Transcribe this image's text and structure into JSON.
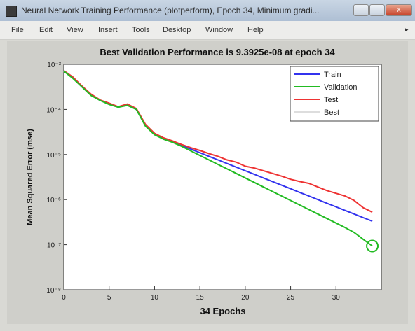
{
  "window": {
    "title": "Neural Network Training Performance (plotperform), Epoch 34, Minimum gradi...",
    "icon": "matlab-figure-icon",
    "controls": {
      "close_label": "x"
    }
  },
  "menu": [
    "File",
    "Edit",
    "View",
    "Insert",
    "Tools",
    "Desktop",
    "Window",
    "Help"
  ],
  "chart_data": {
    "type": "line",
    "title": "Best Validation Performance is 9.3925e-08 at epoch 34",
    "xlabel": "34 Epochs",
    "ylabel": "Mean Squared Error  (mse)",
    "xlim": [
      0,
      35
    ],
    "ylim_log10": [
      -8,
      -3
    ],
    "yscale": "log",
    "x_ticks": [
      0,
      5,
      10,
      15,
      20,
      25,
      30
    ],
    "x_tick_labels": [
      "0",
      "5",
      "10",
      "15",
      "20",
      "25",
      "30"
    ],
    "y_ticks_log10": [
      -8,
      -7,
      -6,
      -5,
      -4,
      -3
    ],
    "y_tick_labels": [
      "10⁻⁸",
      "10⁻⁷",
      "10⁻⁶",
      "10⁻⁵",
      "10⁻⁴",
      "10⁻³"
    ],
    "legend_position": "top-right",
    "grid": false,
    "best_marker": {
      "epoch": 34,
      "value_log10": -7.03
    },
    "series": [
      {
        "name": "Train",
        "color": "#3333ee",
        "x": [
          0,
          1,
          2,
          3,
          4,
          5,
          6,
          7,
          8,
          9,
          10,
          11,
          12,
          13,
          14,
          15,
          16,
          17,
          18,
          19,
          20,
          21,
          22,
          23,
          24,
          25,
          26,
          27,
          28,
          29,
          30,
          31,
          32,
          33,
          34
        ],
        "log10": [
          -3.15,
          -3.3,
          -3.5,
          -3.68,
          -3.8,
          -3.88,
          -3.95,
          -3.9,
          -4.0,
          -4.35,
          -4.55,
          -4.65,
          -4.72,
          -4.8,
          -4.88,
          -4.96,
          -5.04,
          -5.12,
          -5.2,
          -5.28,
          -5.36,
          -5.44,
          -5.52,
          -5.6,
          -5.68,
          -5.76,
          -5.84,
          -5.92,
          -6.0,
          -6.08,
          -6.16,
          -6.24,
          -6.32,
          -6.4,
          -6.48
        ]
      },
      {
        "name": "Validation",
        "color": "#22bb22",
        "x": [
          0,
          1,
          2,
          3,
          4,
          5,
          6,
          7,
          8,
          9,
          10,
          11,
          12,
          13,
          14,
          15,
          16,
          17,
          18,
          19,
          20,
          21,
          22,
          23,
          24,
          25,
          26,
          27,
          28,
          29,
          30,
          31,
          32,
          33,
          34
        ],
        "log10": [
          -3.15,
          -3.31,
          -3.5,
          -3.69,
          -3.8,
          -3.89,
          -3.95,
          -3.91,
          -4.0,
          -4.37,
          -4.56,
          -4.66,
          -4.73,
          -4.82,
          -4.92,
          -5.02,
          -5.12,
          -5.22,
          -5.32,
          -5.42,
          -5.52,
          -5.62,
          -5.72,
          -5.82,
          -5.92,
          -6.02,
          -6.12,
          -6.22,
          -6.32,
          -6.42,
          -6.52,
          -6.62,
          -6.73,
          -6.88,
          -7.03
        ]
      },
      {
        "name": "Test",
        "color": "#ee3333",
        "x": [
          0,
          1,
          2,
          3,
          4,
          5,
          6,
          7,
          8,
          9,
          10,
          11,
          12,
          13,
          14,
          15,
          16,
          17,
          18,
          19,
          20,
          21,
          22,
          23,
          24,
          25,
          26,
          27,
          28,
          29,
          30,
          31,
          32,
          33,
          34
        ],
        "log10": [
          -3.14,
          -3.28,
          -3.48,
          -3.66,
          -3.79,
          -3.86,
          -3.94,
          -3.88,
          -3.98,
          -4.33,
          -4.53,
          -4.63,
          -4.7,
          -4.78,
          -4.85,
          -4.91,
          -4.98,
          -5.04,
          -5.12,
          -5.17,
          -5.26,
          -5.3,
          -5.36,
          -5.42,
          -5.48,
          -5.55,
          -5.6,
          -5.64,
          -5.72,
          -5.8,
          -5.86,
          -5.92,
          -6.02,
          -6.18,
          -6.28
        ]
      },
      {
        "name": "Best",
        "color": "#bbbbbb",
        "x": [
          0,
          34.5
        ],
        "log10": [
          -7.03,
          -7.03
        ]
      }
    ]
  }
}
